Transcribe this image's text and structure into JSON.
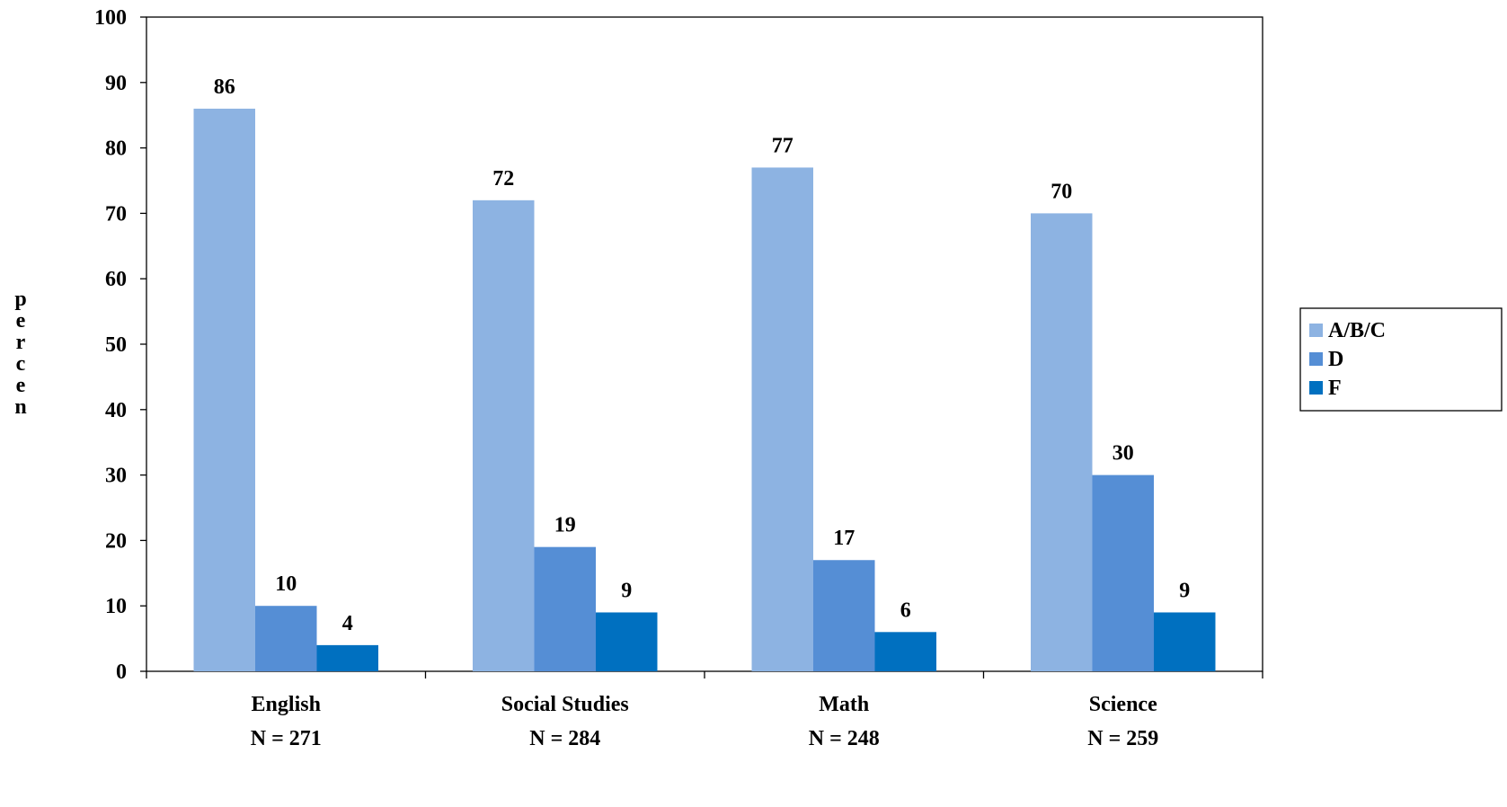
{
  "chart_data": {
    "type": "bar",
    "title": "",
    "xlabel": "",
    "ylabel": "percen",
    "ylim": [
      0,
      100
    ],
    "yticks": [
      "0",
      "10",
      "20",
      "30",
      "40",
      "50",
      "60",
      "70",
      "80",
      "90",
      "100"
    ],
    "grid": false,
    "legend_position": "right",
    "categories": [
      {
        "name": "English",
        "n_label": "N = 271"
      },
      {
        "name": "Social Studies",
        "n_label": "N = 284"
      },
      {
        "name": "Math",
        "n_label": "N = 248"
      },
      {
        "name": "Science",
        "n_label": "N = 259"
      }
    ],
    "series": [
      {
        "name": "A/B/C",
        "color": "#8DB3E2",
        "values": [
          86,
          72,
          77,
          70
        ]
      },
      {
        "name": "D",
        "color": "#558ED5",
        "values": [
          10,
          19,
          17,
          30
        ]
      },
      {
        "name": "F",
        "color": "#0070C0",
        "values": [
          4,
          9,
          6,
          9
        ]
      }
    ]
  }
}
